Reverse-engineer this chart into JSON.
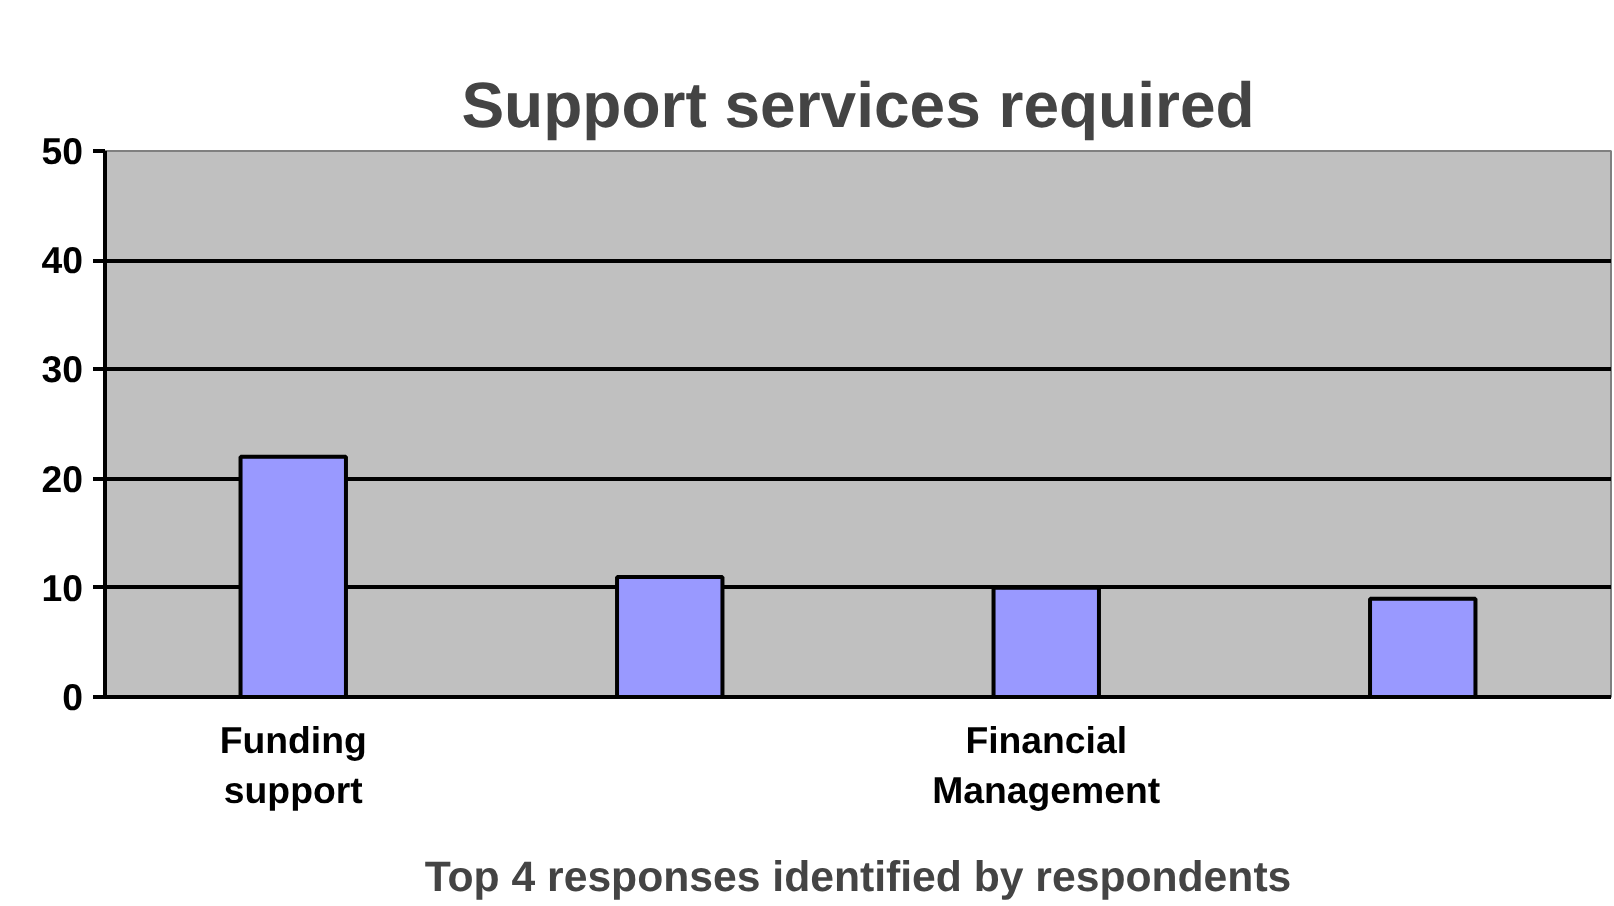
{
  "chart_data": {
    "type": "bar",
    "title": "Support services required",
    "xlabel": "Top 4 responses identified by respondents",
    "categories": [
      "Funding support",
      null,
      "Financial Management",
      null
    ],
    "values": [
      22,
      11,
      10,
      9
    ],
    "color": "#9999ff",
    "ylim": [
      0,
      50
    ],
    "yticks": [
      0,
      10,
      20,
      30,
      40,
      50
    ],
    "grid": "y"
  }
}
